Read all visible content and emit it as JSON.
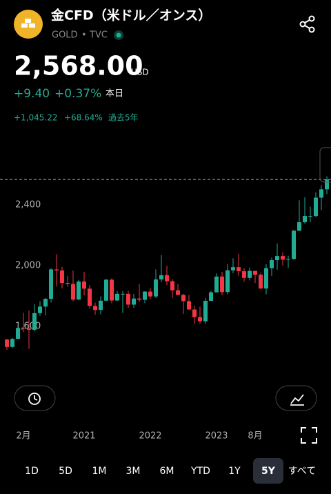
{
  "header": {
    "title": "金CFD（米ドル／オンス）",
    "symbol": "GOLD",
    "separator": "•",
    "source": "TVC",
    "price": "2,568.00",
    "currency": "USD",
    "change": "+9.40",
    "change_percent": "+0.37%",
    "change_period": "本日",
    "change_5y": "+1,045.22",
    "change_5y_percent": "+68.64%",
    "change_5y_period": "過去5年"
  },
  "chart_data": {
    "type": "candlestick",
    "categories": [
      null,
      null,
      null,
      "2月",
      null,
      null,
      null,
      null,
      null,
      null,
      null,
      null,
      null,
      null,
      "2021",
      null,
      null,
      null,
      null,
      null,
      null,
      null,
      null,
      null,
      null,
      null,
      "2022",
      null,
      null,
      null,
      null,
      null,
      null,
      null,
      null,
      null,
      null,
      null,
      "2023",
      null,
      null,
      null,
      null,
      null,
      null,
      "8月",
      null,
      null,
      null,
      null,
      null,
      null,
      null,
      null,
      null,
      null,
      null,
      null,
      null
    ],
    "open": [
      1513,
      1464,
      1517,
      1589,
      1585,
      1577,
      1687,
      1730,
      1781,
      1975,
      1968,
      1886,
      1879,
      1776,
      1895,
      1848,
      1734,
      1708,
      1769,
      1907,
      1770,
      1814,
      1814,
      1743,
      1783,
      1775,
      1829,
      1797,
      1909,
      1937,
      1897,
      1837,
      1807,
      1766,
      1711,
      1661,
      1633,
      1768,
      1824,
      1928,
      1826,
      1969,
      1990,
      1963,
      1919,
      1965,
      1940,
      1849,
      1983,
      2036,
      2063,
      2040,
      2044,
      2230,
      2286,
      2327,
      2327,
      2448,
      2503
    ],
    "high": [
      1516,
      1524,
      1611,
      1689,
      1704,
      1747,
      1765,
      1786,
      1984,
      2075,
      1992,
      1933,
      1966,
      1906,
      1959,
      1872,
      1756,
      1798,
      1913,
      1917,
      1833,
      1832,
      1834,
      1814,
      1877,
      1831,
      1853,
      1975,
      2070,
      1998,
      1910,
      1879,
      1814,
      1808,
      1735,
      1730,
      1786,
      1833,
      1949,
      1959,
      2009,
      2049,
      2079,
      1983,
      1987,
      1966,
      1953,
      2009,
      2052,
      2146,
      2088,
      2065,
      2236,
      2431,
      2450,
      2388,
      2483,
      2531,
      2589
    ],
    "low": [
      1445,
      1459,
      1517,
      1563,
      1451,
      1567,
      1670,
      1671,
      1757,
      1863,
      1849,
      1860,
      1764,
      1775,
      1803,
      1717,
      1677,
      1678,
      1766,
      1751,
      1767,
      1688,
      1721,
      1721,
      1760,
      1753,
      1780,
      1786,
      1890,
      1872,
      1787,
      1805,
      1681,
      1710,
      1615,
      1617,
      1616,
      1765,
      1823,
      1805,
      1810,
      1950,
      1932,
      1893,
      1902,
      1885,
      1846,
      1810,
      1931,
      1973,
      2002,
      1984,
      2039,
      2228,
      2277,
      2286,
      2318,
      2364,
      2471
    ],
    "close": [
      1464,
      1517,
      1589,
      1585,
      1577,
      1687,
      1730,
      1781,
      1975,
      1968,
      1886,
      1879,
      1776,
      1895,
      1848,
      1734,
      1708,
      1769,
      1907,
      1770,
      1814,
      1814,
      1743,
      1783,
      1775,
      1829,
      1797,
      1909,
      1937,
      1897,
      1837,
      1807,
      1766,
      1711,
      1661,
      1633,
      1768,
      1824,
      1928,
      1826,
      1969,
      1990,
      1963,
      1919,
      1965,
      1940,
      1849,
      1983,
      2036,
      2063,
      2040,
      2044,
      2230,
      2286,
      2327,
      2327,
      2448,
      2503,
      2568
    ],
    "up_color": "#22ab94",
    "down_color": "#f23645",
    "ylim": [
      1295,
      2773
    ],
    "yticks": [
      {
        "value": 1600,
        "label": "1,600"
      },
      {
        "value": 2000,
        "label": "2,000"
      },
      {
        "value": 2400,
        "label": "2,400"
      }
    ],
    "current_value": 2568
  },
  "ranges": {
    "options": [
      "1D",
      "5D",
      "1M",
      "3M",
      "6M",
      "YTD",
      "1Y",
      "5Y",
      "すべて"
    ],
    "selected": 7
  }
}
